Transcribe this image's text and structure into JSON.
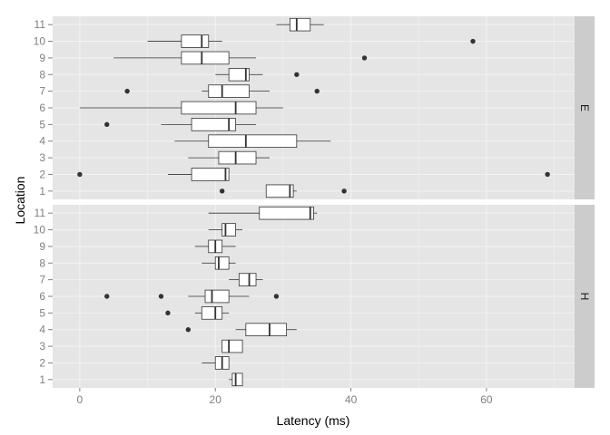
{
  "chart_data": {
    "type": "boxplot",
    "orientation": "horizontal",
    "xlabel": "Latency (ms)",
    "ylabel": "Location",
    "xlim": [
      -4,
      73
    ],
    "x_ticks": [
      0,
      20,
      40,
      60
    ],
    "categories": [
      "1",
      "2",
      "3",
      "4",
      "5",
      "6",
      "7",
      "8",
      "9",
      "10",
      "11"
    ],
    "grid": true,
    "facet_strip_position": "right",
    "panels": [
      {
        "facet": "E",
        "boxes": [
          {
            "location": "1",
            "whisker_low": 27.5,
            "q1": 27.5,
            "median": 31,
            "q3": 31.5,
            "whisker_high": 32,
            "outliers": [
              21,
              39
            ]
          },
          {
            "location": "2",
            "whisker_low": 13,
            "q1": 16.5,
            "median": 21.5,
            "q3": 22,
            "whisker_high": 22,
            "outliers": [
              0,
              69
            ]
          },
          {
            "location": "3",
            "whisker_low": 16,
            "q1": 20.5,
            "median": 23,
            "q3": 26,
            "whisker_high": 28,
            "outliers": []
          },
          {
            "location": "4",
            "whisker_low": 14,
            "q1": 19,
            "median": 24.5,
            "q3": 32,
            "whisker_high": 37,
            "outliers": []
          },
          {
            "location": "5",
            "whisker_low": 12,
            "q1": 16.5,
            "median": 22,
            "q3": 23,
            "whisker_high": 26,
            "outliers": [
              4
            ]
          },
          {
            "location": "6",
            "whisker_low": 0,
            "q1": 15,
            "median": 23,
            "q3": 26,
            "whisker_high": 30,
            "outliers": []
          },
          {
            "location": "7",
            "whisker_low": 18,
            "q1": 19,
            "median": 21,
            "q3": 25,
            "whisker_high": 28,
            "outliers": [
              7,
              35
            ]
          },
          {
            "location": "8",
            "whisker_low": 20,
            "q1": 22,
            "median": 24.5,
            "q3": 25,
            "whisker_high": 27,
            "outliers": [
              32
            ]
          },
          {
            "location": "9",
            "whisker_low": 5,
            "q1": 15,
            "median": 18,
            "q3": 22,
            "whisker_high": 26,
            "outliers": [
              42
            ]
          },
          {
            "location": "10",
            "whisker_low": 10,
            "q1": 15,
            "median": 18,
            "q3": 19,
            "whisker_high": 21,
            "outliers": [
              58
            ]
          },
          {
            "location": "11",
            "whisker_low": 29,
            "q1": 31,
            "median": 32,
            "q3": 34,
            "whisker_high": 36,
            "outliers": []
          }
        ]
      },
      {
        "facet": "H",
        "boxes": [
          {
            "location": "1",
            "whisker_low": 22,
            "q1": 22.5,
            "median": 23,
            "q3": 24,
            "whisker_high": 24,
            "outliers": []
          },
          {
            "location": "2",
            "whisker_low": 18,
            "q1": 20,
            "median": 21,
            "q3": 22,
            "whisker_high": 22,
            "outliers": []
          },
          {
            "location": "3",
            "whisker_low": 21,
            "q1": 21,
            "median": 22,
            "q3": 24,
            "whisker_high": 24,
            "outliers": []
          },
          {
            "location": "4",
            "whisker_low": 23,
            "q1": 24.5,
            "median": 28,
            "q3": 30.5,
            "whisker_high": 32,
            "outliers": [
              16
            ]
          },
          {
            "location": "5",
            "whisker_low": 17,
            "q1": 18,
            "median": 20,
            "q3": 21,
            "whisker_high": 22,
            "outliers": [
              13
            ]
          },
          {
            "location": "6",
            "whisker_low": 16,
            "q1": 18.5,
            "median": 19.5,
            "q3": 22,
            "whisker_high": 25,
            "outliers": [
              4,
              12,
              29
            ]
          },
          {
            "location": "7",
            "whisker_low": 22,
            "q1": 23.5,
            "median": 25,
            "q3": 26,
            "whisker_high": 27,
            "outliers": []
          },
          {
            "location": "8",
            "whisker_low": 18,
            "q1": 20,
            "median": 20.5,
            "q3": 22,
            "whisker_high": 23,
            "outliers": []
          },
          {
            "location": "9",
            "whisker_low": 17,
            "q1": 19,
            "median": 20,
            "q3": 21,
            "whisker_high": 23,
            "outliers": []
          },
          {
            "location": "10",
            "whisker_low": 19,
            "q1": 21,
            "median": 21.5,
            "q3": 23,
            "whisker_high": 24,
            "outliers": []
          },
          {
            "location": "11",
            "whisker_low": 19,
            "q1": 26.5,
            "median": 34,
            "q3": 34.5,
            "whisker_high": 35,
            "outliers": []
          }
        ]
      }
    ]
  },
  "colors": {
    "panel_background": "#e5e5e5",
    "grid_line": "#f2f2f2",
    "strip_background": "#cccccc",
    "box_fill": "#ffffff",
    "box_stroke": "#333333",
    "outlier": "#333333",
    "tick_text": "#7f7f7f"
  }
}
